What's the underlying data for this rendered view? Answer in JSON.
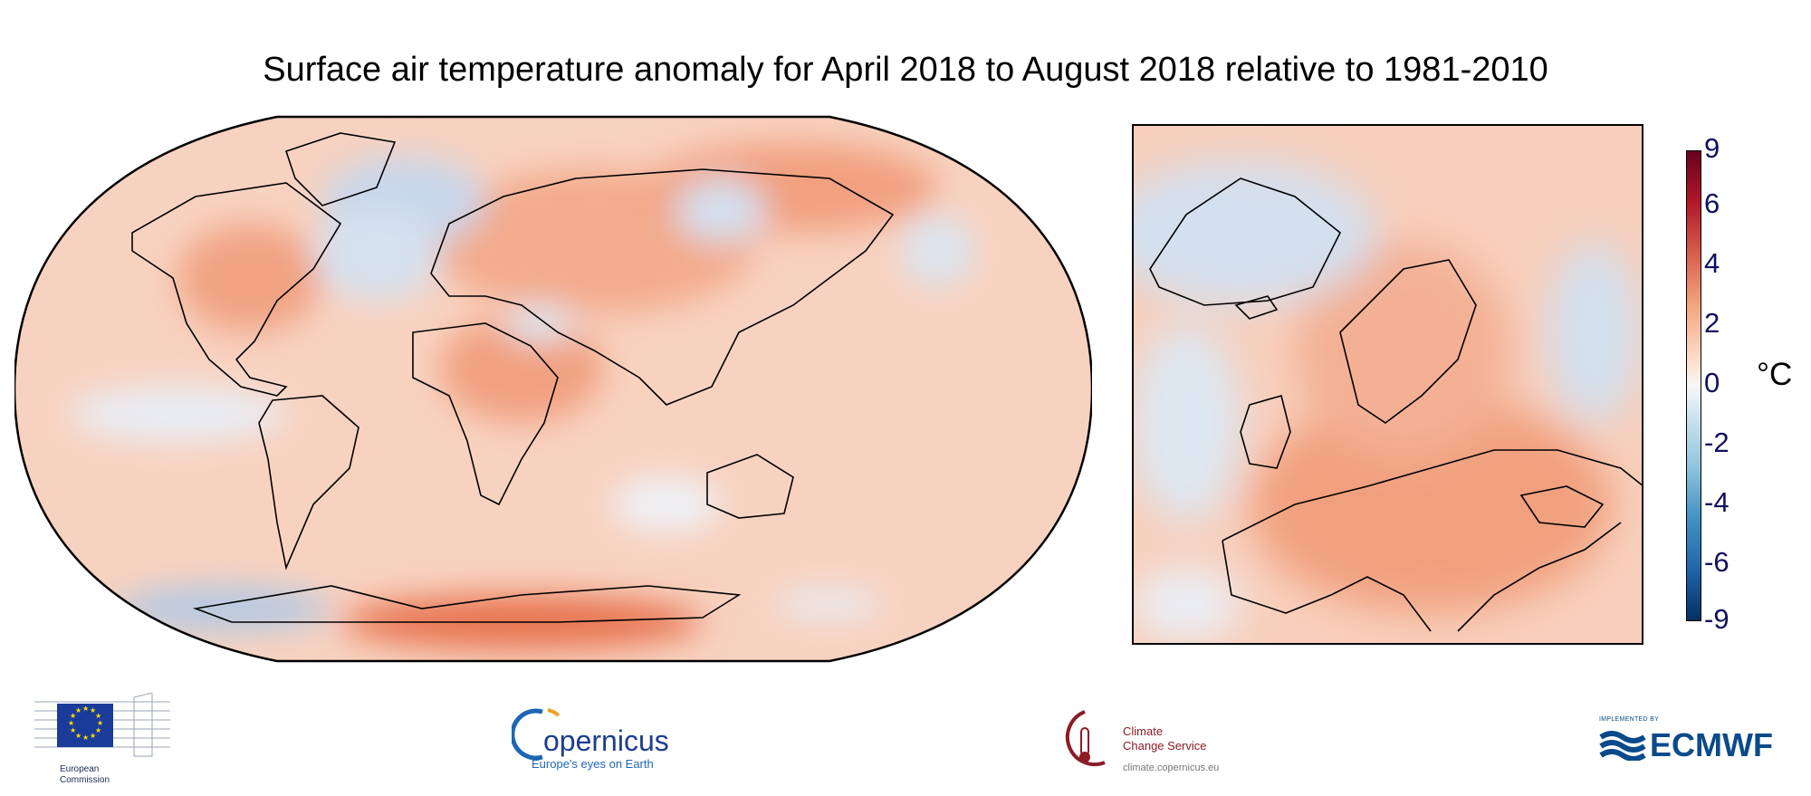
{
  "title": "Surface air temperature anomaly for April 2018 to August 2018 relative to 1981-2010",
  "colorbar": {
    "ticks": [
      "9",
      "6",
      "4",
      "2",
      "0",
      "-2",
      "-4",
      "-6",
      "-9"
    ],
    "unit": "°C",
    "colors": [
      "#67001f",
      "#b2182b",
      "#d6604d",
      "#f4a582",
      "#fddbc7",
      "#f7f7f7",
      "#d1e5f0",
      "#92c5de",
      "#4393c3",
      "#2166ac",
      "#053061"
    ]
  },
  "maps": {
    "world": {
      "projection": "Robinson",
      "region": "Global"
    },
    "europe": {
      "region": "Europe"
    }
  },
  "logos": {
    "european_commission": {
      "line1": "European",
      "line2": "Commission"
    },
    "copernicus": {
      "name": "opernicus",
      "tagline": "Europe's eyes on Earth"
    },
    "ccs": {
      "line1": "Climate",
      "line2": "Change Service",
      "url": "climate.copernicus.eu"
    },
    "ecmwf": {
      "implemented_by": "IMPLEMENTED BY",
      "name": "ECMWF"
    }
  }
}
